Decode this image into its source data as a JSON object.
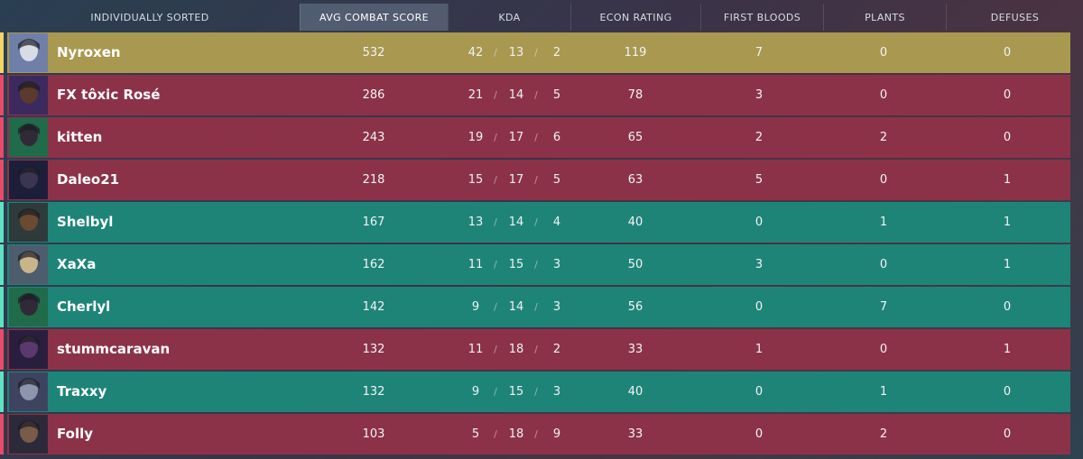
{
  "header": {
    "sort_label": "INDIVIDUALLY SORTED",
    "columns": [
      "AVG COMBAT SCORE",
      "KDA",
      "ECON RATING",
      "FIRST BLOODS",
      "PLANTS",
      "DEFUSES"
    ]
  },
  "colors": {
    "red_team": "#8c3248",
    "green_team": "#1f8478",
    "top_player": "#a9984f"
  },
  "players": [
    {
      "name": "Nyroxen",
      "team": "gold",
      "agent_icon": "agent-portrait-icon",
      "acs": "532",
      "k": "42",
      "d": "13",
      "a": "2",
      "econ": "119",
      "fb": "7",
      "plants": "0",
      "defuses": "0"
    },
    {
      "name": "FX tôxic Rosé",
      "team": "red",
      "agent_icon": "agent-portrait-icon",
      "acs": "286",
      "k": "21",
      "d": "14",
      "a": "5",
      "econ": "78",
      "fb": "3",
      "plants": "0",
      "defuses": "0"
    },
    {
      "name": "kitten",
      "team": "red",
      "agent_icon": "agent-portrait-icon",
      "acs": "243",
      "k": "19",
      "d": "17",
      "a": "6",
      "econ": "65",
      "fb": "2",
      "plants": "2",
      "defuses": "0"
    },
    {
      "name": "Daleo21",
      "team": "red",
      "agent_icon": "agent-portrait-icon",
      "acs": "218",
      "k": "15",
      "d": "17",
      "a": "5",
      "econ": "63",
      "fb": "5",
      "plants": "0",
      "defuses": "1"
    },
    {
      "name": "Shelbyl",
      "team": "green",
      "agent_icon": "agent-portrait-icon",
      "acs": "167",
      "k": "13",
      "d": "14",
      "a": "4",
      "econ": "40",
      "fb": "0",
      "plants": "1",
      "defuses": "1"
    },
    {
      "name": "XaXa",
      "team": "green",
      "agent_icon": "agent-portrait-icon",
      "acs": "162",
      "k": "11",
      "d": "15",
      "a": "3",
      "econ": "50",
      "fb": "3",
      "plants": "0",
      "defuses": "1"
    },
    {
      "name": "Cherlyl",
      "team": "green",
      "agent_icon": "agent-portrait-icon",
      "acs": "142",
      "k": "9",
      "d": "14",
      "a": "3",
      "econ": "56",
      "fb": "0",
      "plants": "7",
      "defuses": "0"
    },
    {
      "name": "stummcaravan",
      "team": "red",
      "agent_icon": "agent-portrait-icon",
      "acs": "132",
      "k": "11",
      "d": "18",
      "a": "2",
      "econ": "33",
      "fb": "1",
      "plants": "0",
      "defuses": "1"
    },
    {
      "name": "Traxxy",
      "team": "green",
      "agent_icon": "agent-portrait-icon",
      "acs": "132",
      "k": "9",
      "d": "15",
      "a": "3",
      "econ": "40",
      "fb": "0",
      "plants": "1",
      "defuses": "0"
    },
    {
      "name": "Folly",
      "team": "red",
      "agent_icon": "agent-portrait-icon",
      "acs": "103",
      "k": "5",
      "d": "18",
      "a": "9",
      "econ": "33",
      "fb": "0",
      "plants": "2",
      "defuses": "0"
    }
  ],
  "slash": "/"
}
